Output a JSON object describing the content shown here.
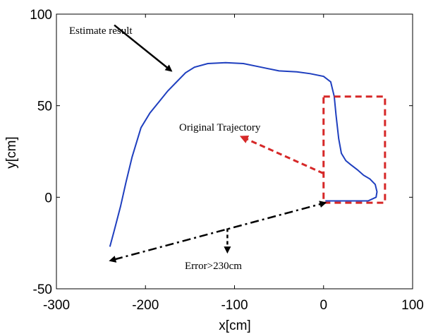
{
  "chart_data": {
    "type": "line",
    "xlabel": "x[cm]",
    "ylabel": "y[cm]",
    "xlim": [
      -300,
      100
    ],
    "ylim": [
      -50,
      100
    ],
    "x_ticks": [
      "-300",
      "-200",
      "-100",
      "0",
      "100"
    ],
    "y_ticks": [
      "-50",
      "0",
      "50",
      "100"
    ],
    "x_tick_values": [
      -300,
      -200,
      -100,
      0,
      100
    ],
    "y_tick_values": [
      -50,
      0,
      50,
      100
    ],
    "grid": false,
    "series": [
      {
        "color": "#1f3fbf",
        "points": [
          [
            -240,
            -27
          ],
          [
            -235,
            -18
          ],
          [
            -228,
            -5
          ],
          [
            -222,
            8
          ],
          [
            -215,
            22
          ],
          [
            -205,
            38
          ],
          [
            -195,
            46
          ],
          [
            -185,
            52
          ],
          [
            -175,
            58
          ],
          [
            -165,
            63
          ],
          [
            -155,
            68
          ],
          [
            -145,
            71
          ],
          [
            -130,
            73
          ],
          [
            -110,
            73.5
          ],
          [
            -90,
            73
          ],
          [
            -70,
            71
          ],
          [
            -50,
            69
          ],
          [
            -30,
            68.5
          ],
          [
            -15,
            67.5
          ],
          [
            0,
            66
          ],
          [
            8,
            63
          ],
          [
            12,
            55
          ],
          [
            14,
            45
          ],
          [
            17,
            32
          ],
          [
            20,
            24
          ],
          [
            25,
            20
          ],
          [
            30,
            18
          ],
          [
            38,
            15
          ],
          [
            45,
            12
          ],
          [
            52,
            10
          ],
          [
            58,
            7
          ],
          [
            60,
            3
          ],
          [
            59,
            0
          ],
          [
            50,
            -2
          ],
          [
            40,
            -2
          ],
          [
            30,
            -2
          ],
          [
            20,
            -2
          ],
          [
            8,
            -2
          ],
          [
            2,
            -2
          ]
        ]
      }
    ],
    "annotations": [
      {
        "text": "Estimate result"
      },
      {
        "text": "Original Trajectory"
      },
      {
        "text": "Error>230cm"
      }
    ],
    "region_box": {
      "x": [
        0,
        69
      ],
      "y": [
        -3,
        55
      ],
      "color": "#d62828"
    },
    "arrows": [
      {
        "from": [
          -235,
          94
        ],
        "to": [
          -171,
          69
        ],
        "color": "#000000",
        "style": "solid"
      },
      {
        "from": [
          0,
          13
        ],
        "to": [
          -92,
          33
        ],
        "color": "#d62828",
        "style": "dashed"
      },
      {
        "from": [
          -235,
          -34
        ],
        "to": [
          2,
          -3
        ],
        "color": "#000000",
        "style": "dashdot",
        "double": true
      },
      {
        "from": [
          -108,
          -17
        ],
        "to": [
          -108,
          -30
        ],
        "color": "#000000",
        "style": "dashed"
      }
    ]
  }
}
